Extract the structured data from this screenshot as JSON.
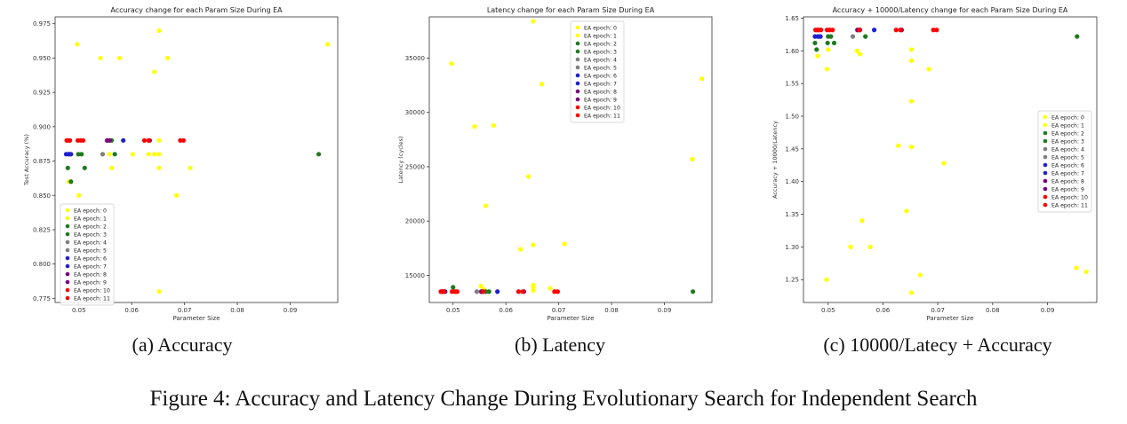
{
  "chart_data": [
    {
      "type": "scatter",
      "title": "Accuracy change for each Param Size During EA",
      "xlabel": "Parameter Size",
      "ylabel": "Test Accuracy (%)",
      "xlim": [
        0.0455,
        0.099
      ],
      "ylim": [
        0.772,
        0.98
      ],
      "xticks": [
        0.05,
        0.06,
        0.07,
        0.08,
        0.09
      ],
      "yticks": [
        0.775,
        0.8,
        0.825,
        0.85,
        0.875,
        0.9,
        0.925,
        0.95,
        0.975
      ],
      "ytick_labels": [
        "0.775",
        "0.800",
        "0.825",
        "0.850",
        "0.875",
        "0.900",
        "0.925",
        "0.950",
        "0.975"
      ],
      "grid": false,
      "legend": "lower left",
      "series": [
        {
          "name": "EA epoch: 0",
          "color": "#ffff00",
          "points": [
            [
              0.0497,
              0.96
            ],
            [
              0.0541,
              0.95
            ],
            [
              0.0577,
              0.95
            ],
            [
              0.0643,
              0.94
            ],
            [
              0.0652,
              0.97
            ],
            [
              0.0668,
              0.95
            ],
            [
              0.0971,
              0.96
            ],
            [
              0.05,
              0.85
            ],
            [
              0.0652,
              0.78
            ],
            [
              0.0685,
              0.85
            ],
            [
              0.0711,
              0.87
            ],
            [
              0.0652,
              0.87
            ]
          ]
        },
        {
          "name": "EA epoch: 1",
          "color": "#ffff00",
          "points": [
            [
              0.0481,
              0.86
            ],
            [
              0.0558,
              0.88
            ],
            [
              0.0562,
              0.87
            ],
            [
              0.0643,
              0.88
            ],
            [
              0.0652,
              0.89
            ],
            [
              0.0652,
              0.88
            ],
            [
              0.0602,
              0.88
            ],
            [
              0.0632,
              0.88
            ]
          ]
        },
        {
          "name": "EA epoch: 2",
          "color": "#1f7a1f",
          "points": [
            [
              0.0479,
              0.87
            ],
            [
              0.0485,
              0.86
            ],
            [
              0.0499,
              0.88
            ],
            [
              0.0511,
              0.87
            ],
            [
              0.0568,
              0.88
            ],
            [
              0.0954,
              0.88
            ]
          ]
        },
        {
          "name": "EA epoch: 3",
          "color": "#1f7a1f",
          "points": [
            [
              0.0481,
              0.88
            ],
            [
              0.0505,
              0.88
            ],
            [
              0.0562,
              0.89
            ]
          ]
        },
        {
          "name": "EA epoch: 4",
          "color": "#7f7f7f",
          "points": [
            [
              0.0545,
              0.88
            ]
          ]
        },
        {
          "name": "EA epoch: 5",
          "color": "#7f7f7f",
          "points": [
            [
              0.0553,
              0.89
            ]
          ]
        },
        {
          "name": "EA epoch: 6",
          "color": "#1f1fcf",
          "points": [
            [
              0.0476,
              0.88
            ],
            [
              0.0481,
              0.88
            ],
            [
              0.0584,
              0.89
            ]
          ]
        },
        {
          "name": "EA epoch: 7",
          "color": "#1f1fcf",
          "points": [
            [
              0.0485,
              0.88
            ]
          ]
        },
        {
          "name": "EA epoch: 8",
          "color": "#7a007a",
          "points": [
            [
              0.0554,
              0.89
            ]
          ]
        },
        {
          "name": "EA epoch: 9",
          "color": "#7a007a",
          "points": [
            [
              0.0558,
              0.89
            ],
            [
              0.0634,
              0.89
            ]
          ]
        },
        {
          "name": "EA epoch: 10",
          "color": "#ff0000",
          "points": [
            [
              0.0477,
              0.89
            ],
            [
              0.0483,
              0.89
            ],
            [
              0.0498,
              0.89
            ],
            [
              0.0508,
              0.89
            ],
            [
              0.0624,
              0.89
            ],
            [
              0.0698,
              0.89
            ]
          ]
        },
        {
          "name": "EA epoch: 11",
          "color": "#ff0000",
          "points": [
            [
              0.048,
              0.89
            ],
            [
              0.0503,
              0.89
            ],
            [
              0.0632,
              0.89
            ],
            [
              0.0692,
              0.89
            ]
          ]
        }
      ]
    },
    {
      "type": "scatter",
      "title": "Latency change for each Param Size During EA",
      "xlabel": "Parameter Size",
      "ylabel": "Latency (cycles)",
      "xlim": [
        0.0455,
        0.099
      ],
      "ylim": [
        12500,
        38800
      ],
      "xticks": [
        0.05,
        0.06,
        0.07,
        0.08,
        0.09
      ],
      "yticks": [
        15000,
        20000,
        25000,
        30000,
        35000
      ],
      "ytick_labels": [
        "15000",
        "20000",
        "25000",
        "30000",
        "35000"
      ],
      "grid": false,
      "legend": "upper center",
      "series": [
        {
          "name": "EA epoch: 0",
          "color": "#ffff00",
          "points": [
            [
              0.0497,
              34500
            ],
            [
              0.0541,
              28700
            ],
            [
              0.0577,
              28800
            ],
            [
              0.0643,
              24100
            ],
            [
              0.0652,
              38400
            ],
            [
              0.0668,
              32600
            ],
            [
              0.0971,
              33100
            ],
            [
              0.0953,
              25700
            ],
            [
              0.0562,
              21400
            ],
            [
              0.0652,
              17800
            ],
            [
              0.0628,
              17400
            ],
            [
              0.0711,
              17900
            ],
            [
              0.0553,
              14000
            ],
            [
              0.0684,
              13800
            ],
            [
              0.0652,
              13900
            ]
          ]
        },
        {
          "name": "EA epoch: 1",
          "color": "#ffff00",
          "points": [
            [
              0.0652,
              14100
            ],
            [
              0.0558,
              13700
            ],
            [
              0.0652,
              13600
            ]
          ]
        },
        {
          "name": "EA epoch: 2",
          "color": "#1f7a1f",
          "points": [
            [
              0.0479,
              13500
            ],
            [
              0.05,
              13900
            ],
            [
              0.0568,
              13500
            ],
            [
              0.0954,
              13500
            ]
          ]
        },
        {
          "name": "EA epoch: 3",
          "color": "#1f7a1f",
          "points": [
            [
              0.0505,
              13500
            ],
            [
              0.0562,
              13500
            ]
          ]
        },
        {
          "name": "EA epoch: 4",
          "color": "#7f7f7f",
          "points": [
            [
              0.0545,
              13500
            ]
          ]
        },
        {
          "name": "EA epoch: 5",
          "color": "#7f7f7f",
          "points": [
            [
              0.0553,
              13500
            ]
          ]
        },
        {
          "name": "EA epoch: 6",
          "color": "#1f1fcf",
          "points": [
            [
              0.0481,
              13500
            ],
            [
              0.0584,
              13500
            ]
          ]
        },
        {
          "name": "EA epoch: 7",
          "color": "#1f1fcf",
          "points": [
            [
              0.0485,
              13500
            ]
          ]
        },
        {
          "name": "EA epoch: 8",
          "color": "#7a007a",
          "points": [
            [
              0.0554,
              13500
            ]
          ]
        },
        {
          "name": "EA epoch: 9",
          "color": "#7a007a",
          "points": [
            [
              0.0634,
              13500
            ]
          ]
        },
        {
          "name": "EA epoch: 10",
          "color": "#ff0000",
          "points": [
            [
              0.0477,
              13500
            ],
            [
              0.0483,
              13500
            ],
            [
              0.0498,
              13500
            ],
            [
              0.0508,
              13500
            ],
            [
              0.0624,
              13500
            ],
            [
              0.0698,
              13500
            ]
          ]
        },
        {
          "name": "EA epoch: 11",
          "color": "#ff0000",
          "points": [
            [
              0.048,
              13500
            ],
            [
              0.0503,
              13500
            ],
            [
              0.0557,
              13500
            ],
            [
              0.0632,
              13500
            ],
            [
              0.0692,
              13500
            ]
          ]
        }
      ]
    },
    {
      "type": "scatter",
      "title": "Accuracy + 10000/Latency change for each Param Size During EA",
      "xlabel": "Parameter Size",
      "ylabel": "Accuracy + 10000/Latency",
      "xlim": [
        0.0455,
        0.099
      ],
      "ylim": [
        1.215,
        1.652
      ],
      "xticks": [
        0.05,
        0.06,
        0.07,
        0.08,
        0.09
      ],
      "yticks": [
        1.25,
        1.3,
        1.35,
        1.4,
        1.45,
        1.5,
        1.55,
        1.6,
        1.65
      ],
      "ytick_labels": [
        "1.25",
        "1.30",
        "1.35",
        "1.40",
        "1.45",
        "1.50",
        "1.55",
        "1.60",
        "1.65"
      ],
      "grid": false,
      "legend": "center right",
      "series": [
        {
          "name": "EA epoch: 0",
          "color": "#ffff00",
          "points": [
            [
              0.0497,
              1.25
            ],
            [
              0.0541,
              1.3
            ],
            [
              0.0577,
              1.3
            ],
            [
              0.0562,
              1.34
            ],
            [
              0.0643,
              1.355
            ],
            [
              0.0652,
              1.23
            ],
            [
              0.0668,
              1.257
            ],
            [
              0.0628,
              1.455
            ],
            [
              0.0652,
              1.453
            ],
            [
              0.0711,
              1.428
            ],
            [
              0.0652,
              1.523
            ],
            [
              0.0953,
              1.268
            ],
            [
              0.0971,
              1.262
            ],
            [
              0.0553,
              1.6
            ],
            [
              0.0684,
              1.572
            ],
            [
              0.0652,
              1.585
            ]
          ]
        },
        {
          "name": "EA epoch: 1",
          "color": "#ffff00",
          "points": [
            [
              0.0481,
              1.592
            ],
            [
              0.0498,
              1.572
            ],
            [
              0.05,
              1.602
            ],
            [
              0.0558,
              1.595
            ],
            [
              0.0652,
              1.602
            ]
          ]
        },
        {
          "name": "EA epoch: 2",
          "color": "#1f7a1f",
          "points": [
            [
              0.0476,
              1.612
            ],
            [
              0.0479,
              1.602
            ],
            [
              0.0499,
              1.612
            ],
            [
              0.0511,
              1.612
            ],
            [
              0.0568,
              1.622
            ],
            [
              0.0954,
              1.622
            ]
          ]
        },
        {
          "name": "EA epoch: 3",
          "color": "#1f7a1f",
          "points": [
            [
              0.0481,
              1.622
            ],
            [
              0.05,
              1.622
            ],
            [
              0.0505,
              1.622
            ]
          ]
        },
        {
          "name": "EA epoch: 4",
          "color": "#7f7f7f",
          "points": [
            [
              0.0545,
              1.622
            ]
          ]
        },
        {
          "name": "EA epoch: 5",
          "color": "#7f7f7f",
          "points": [
            [
              0.0553,
              1.632
            ]
          ]
        },
        {
          "name": "EA epoch: 6",
          "color": "#1f1fcf",
          "points": [
            [
              0.0476,
              1.622
            ],
            [
              0.0482,
              1.622
            ],
            [
              0.0584,
              1.632
            ]
          ]
        },
        {
          "name": "EA epoch: 7",
          "color": "#1f1fcf",
          "points": [
            [
              0.0486,
              1.622
            ]
          ]
        },
        {
          "name": "EA epoch: 8",
          "color": "#7a007a",
          "points": [
            [
              0.0554,
              1.632
            ]
          ]
        },
        {
          "name": "EA epoch: 9",
          "color": "#7a007a",
          "points": [
            [
              0.0558,
              1.632
            ],
            [
              0.0634,
              1.632
            ]
          ]
        },
        {
          "name": "EA epoch: 10",
          "color": "#ff0000",
          "points": [
            [
              0.0477,
              1.632
            ],
            [
              0.0483,
              1.632
            ],
            [
              0.0498,
              1.632
            ],
            [
              0.0503,
              1.632
            ],
            [
              0.0624,
              1.632
            ],
            [
              0.0698,
              1.632
            ]
          ]
        },
        {
          "name": "EA epoch: 11",
          "color": "#ff0000",
          "points": [
            [
              0.048,
              1.632
            ],
            [
              0.0487,
              1.632
            ],
            [
              0.0508,
              1.632
            ],
            [
              0.0557,
              1.632
            ],
            [
              0.0632,
              1.632
            ],
            [
              0.0692,
              1.632
            ]
          ]
        }
      ]
    }
  ],
  "subcaptions": [
    "(a) Accuracy",
    "(b) Latency",
    "(c) 10000/Latecy + Accuracy"
  ],
  "figure_caption": "Figure 4: Accuracy and Latency Change During Evolutionary Search for Independent Search"
}
